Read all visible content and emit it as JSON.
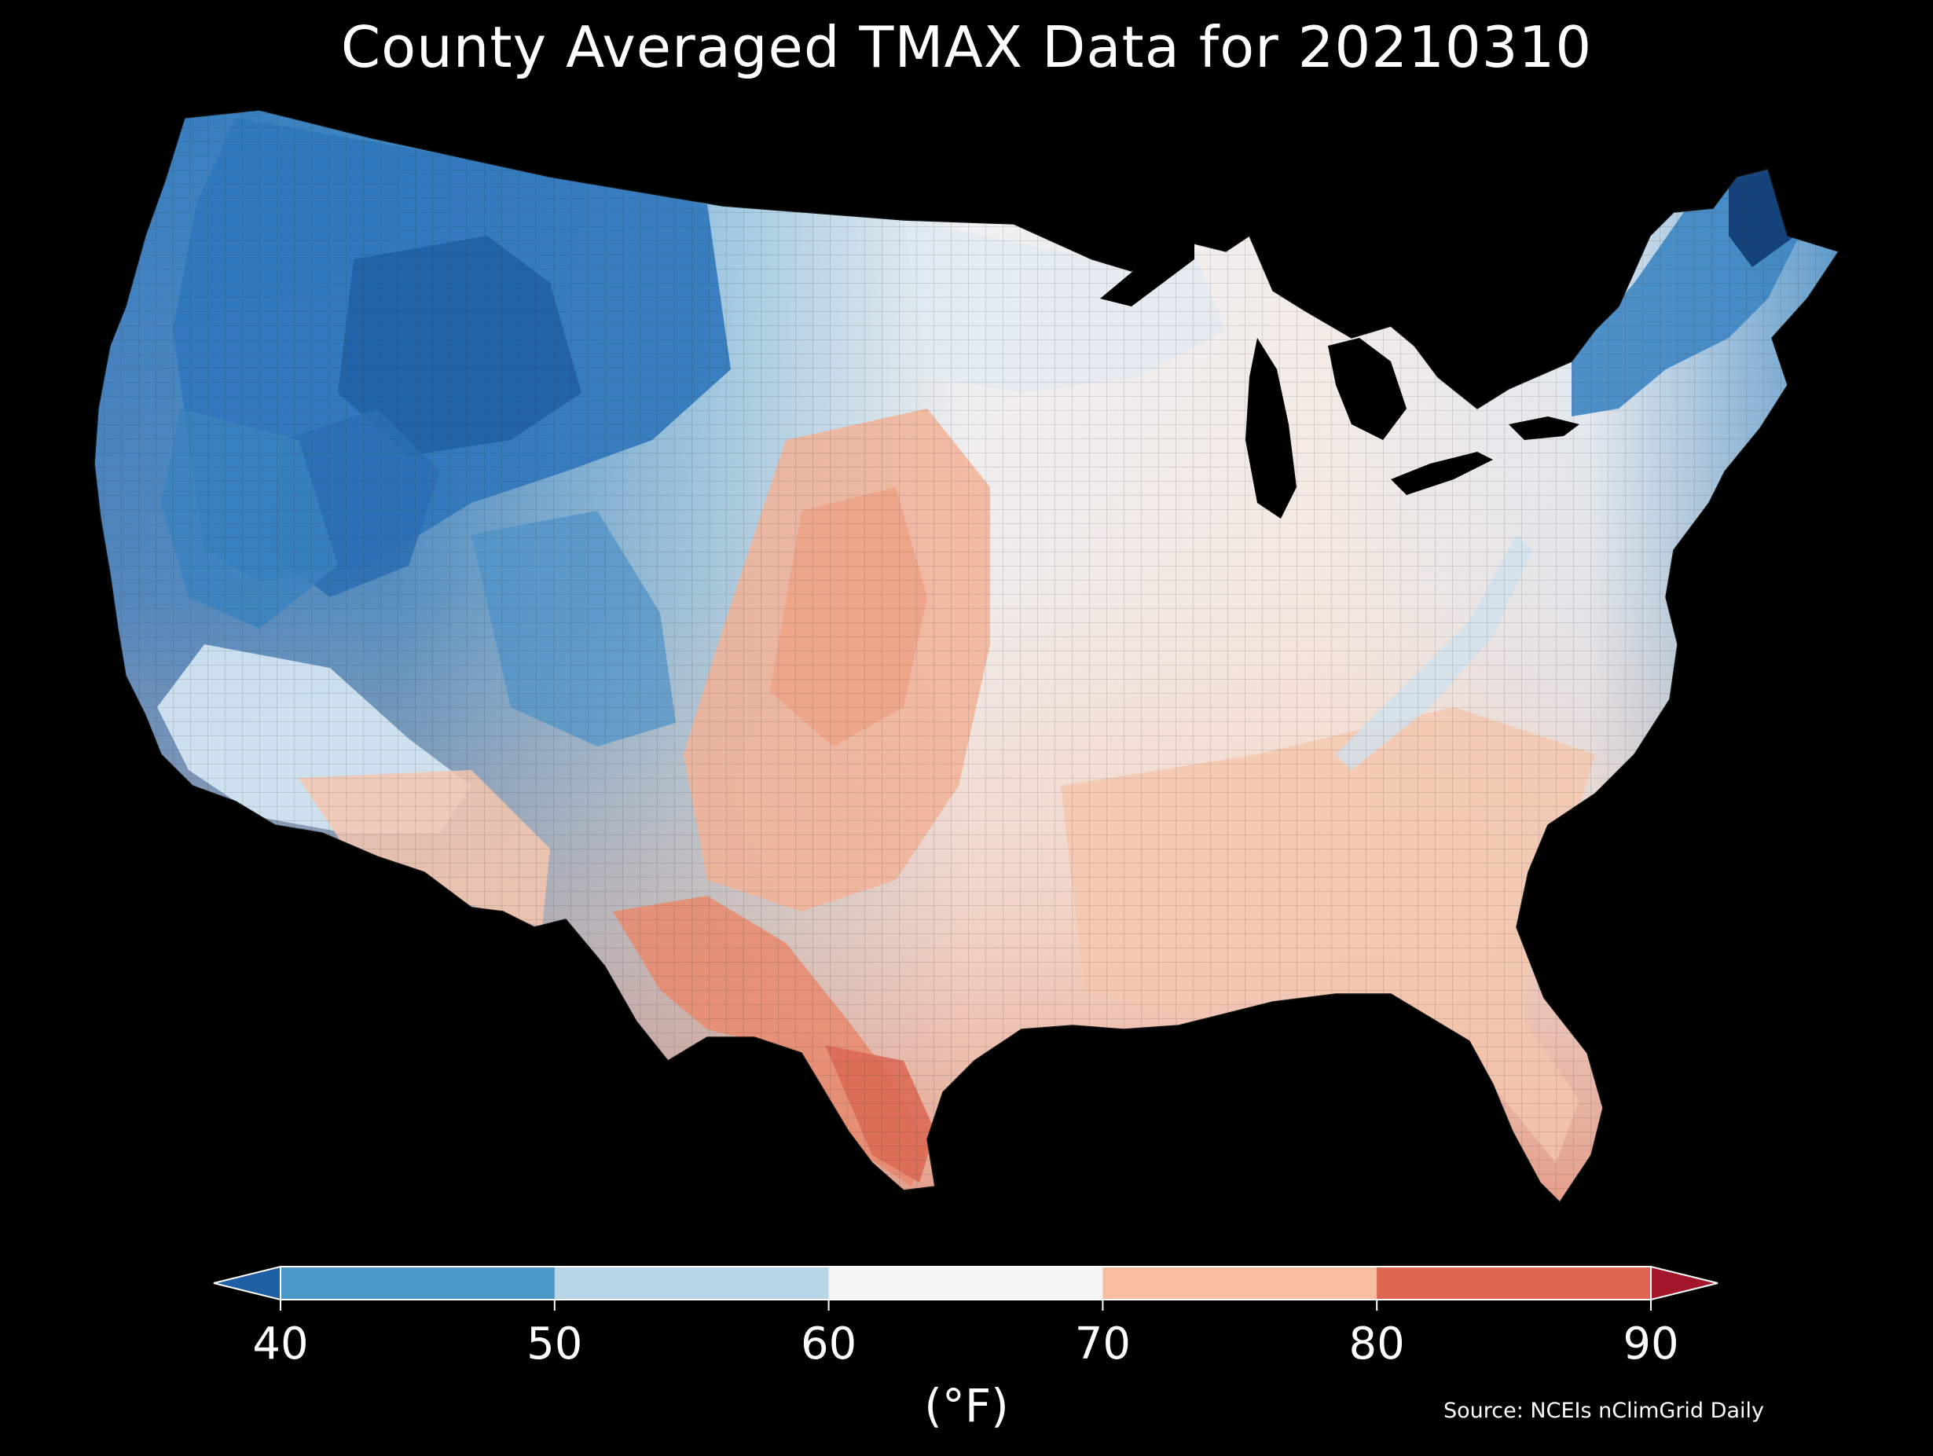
{
  "title": "County Averaged TMAX Data for 20210310",
  "colorbar": {
    "ticks": [
      "40",
      "50",
      "60",
      "70",
      "80",
      "90"
    ],
    "unit": "(°F)",
    "bins": [
      {
        "range": "<40",
        "color": "#1f5fa3"
      },
      {
        "range": "40-50",
        "color": "#4a97c8"
      },
      {
        "range": "50-60",
        "color": "#b7d7e9"
      },
      {
        "range": "60-70",
        "color": "#f5f5f5"
      },
      {
        "range": "70-80",
        "color": "#f7bda1"
      },
      {
        "range": "80-90",
        "color": "#de6552"
      },
      {
        "range": ">90",
        "color": "#a3172a"
      }
    ]
  },
  "source": "Source: NCEIs nClimGrid Daily",
  "colors": {
    "background": "#000000",
    "very_cold": "#1c5797",
    "cold": "#3b85c2",
    "cool": "#85b9dc",
    "mild": "#d3e6f1",
    "neutral": "#f4f1ef",
    "warm": "#f4c5ad",
    "hot": "#ec9b7e",
    "very_hot": "#de6a55",
    "lakes": "#000000"
  },
  "map_regions": [
    {
      "name": "Pacific Northwest coast",
      "tmax_bin": "40-50"
    },
    {
      "name": "Northern Rockies and Northern Plains",
      "tmax_bin": "40-50"
    },
    {
      "name": "Great Basin",
      "tmax_bin": "40-50"
    },
    {
      "name": "California",
      "tmax_bin": "50-60"
    },
    {
      "name": "Upper Midwest",
      "tmax_bin": "60-70"
    },
    {
      "name": "Ohio Valley and Appalachians",
      "tmax_bin": "60-70"
    },
    {
      "name": "Northern New England",
      "tmax_bin": "<40"
    },
    {
      "name": "Southern Plains",
      "tmax_bin": "70-80"
    },
    {
      "name": "Southeast",
      "tmax_bin": "70-80"
    },
    {
      "name": "South Texas",
      "tmax_bin": "80-90"
    }
  ]
}
